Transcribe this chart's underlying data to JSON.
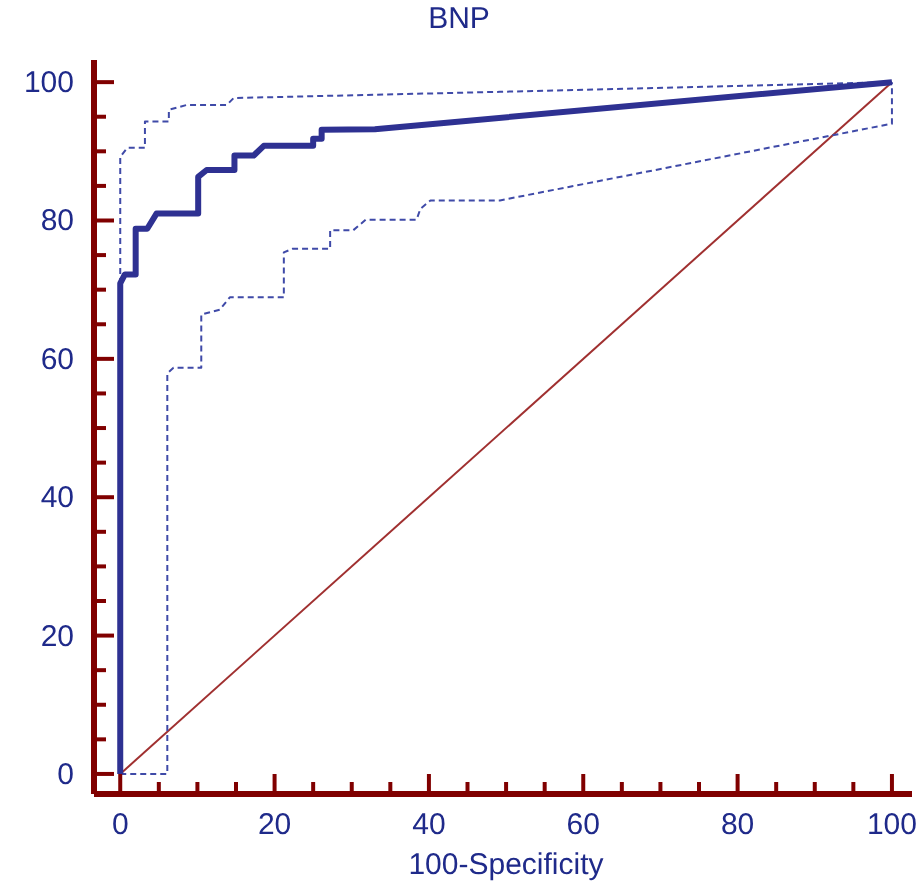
{
  "chart_data": {
    "type": "line",
    "title": "BNP",
    "xlabel": "100-Specificity",
    "xlim": [
      -3.4,
      102.6
    ],
    "ylim": [
      -2.9,
      103.2
    ],
    "xticks": [
      0,
      {
        "value": 5,
        "label": null
      },
      {
        "value": 10,
        "label": null
      },
      {
        "value": 15,
        "label": null
      },
      20,
      {
        "value": 25,
        "label": null
      },
      {
        "value": 30,
        "label": null
      },
      {
        "value": 35,
        "label": null
      },
      40,
      {
        "value": 45,
        "label": null
      },
      {
        "value": 50,
        "label": null
      },
      {
        "value": 55,
        "label": null
      },
      60,
      {
        "value": 65,
        "label": null
      },
      {
        "value": 70,
        "label": null
      },
      {
        "value": 75,
        "label": null
      },
      80,
      {
        "value": 85,
        "label": null
      },
      {
        "value": 90,
        "label": null
      },
      {
        "value": 95,
        "label": null
      },
      100
    ],
    "yticks": [
      0,
      {
        "value": 5,
        "label": null
      },
      {
        "value": 10,
        "label": null
      },
      {
        "value": 15,
        "label": null
      },
      20,
      {
        "value": 25,
        "label": null
      },
      {
        "value": 30,
        "label": null
      },
      {
        "value": 35,
        "label": null
      },
      40,
      {
        "value": 45,
        "label": null
      },
      {
        "value": 50,
        "label": null
      },
      {
        "value": 55,
        "label": null
      },
      60,
      {
        "value": 65,
        "label": null
      },
      {
        "value": 70,
        "label": null
      },
      {
        "value": 75,
        "label": null
      },
      80,
      {
        "value": 85,
        "label": null
      },
      {
        "value": 90,
        "label": null
      },
      {
        "value": 95,
        "label": null
      },
      100
    ],
    "grid": false,
    "legend": false,
    "marker": "none",
    "series": [
      {
        "color": "#a03030",
        "line_style": "solid",
        "x": [
          0,
          100
        ],
        "values": [
          0,
          100
        ]
      },
      {
        "color": "#3f4aa8",
        "line_style": "dashed",
        "x": [
          0,
          6.1,
          6.1,
          6.9,
          10.5,
          10.5,
          12.9,
          14.2,
          21.2,
          21.2,
          22.3,
          27.2,
          27.2,
          30.2,
          31.8,
          38.4,
          38.9,
          40.2,
          49.2,
          100,
          100
        ],
        "values": [
          0,
          0,
          57.9,
          58.7,
          58.7,
          66.4,
          67.1,
          68.9,
          68.9,
          75.4,
          75.9,
          75.9,
          78.6,
          78.6,
          80.1,
          80.1,
          81.7,
          82.9,
          82.9,
          94,
          100
        ]
      },
      {
        "color": "#3f4aa8",
        "line_style": "dashed",
        "x": [
          0,
          0,
          0.9,
          3.2,
          3.2,
          6.3,
          6.3,
          8.6,
          13.8,
          14.7,
          49.2,
          100
        ],
        "values": [
          0,
          89.2,
          90.5,
          90.5,
          94.3,
          94.3,
          96,
          96.7,
          96.7,
          97.7,
          98.6,
          100
        ]
      },
      {
        "color": "#2e3192",
        "line_style": "solid",
        "x": [
          0,
          0,
          0.6,
          2,
          2,
          3.5,
          4.7,
          10.1,
          10.1,
          11.2,
          14.8,
          14.8,
          17.3,
          18.6,
          25,
          25,
          26.1,
          26.1,
          33,
          100
        ],
        "values": [
          0,
          70.9,
          72.2,
          72.2,
          78.8,
          78.8,
          81,
          81,
          86.3,
          87.3,
          87.3,
          89.4,
          89.4,
          90.8,
          90.8,
          91.8,
          91.8,
          93.1,
          93.2,
          100
        ]
      }
    ]
  }
}
